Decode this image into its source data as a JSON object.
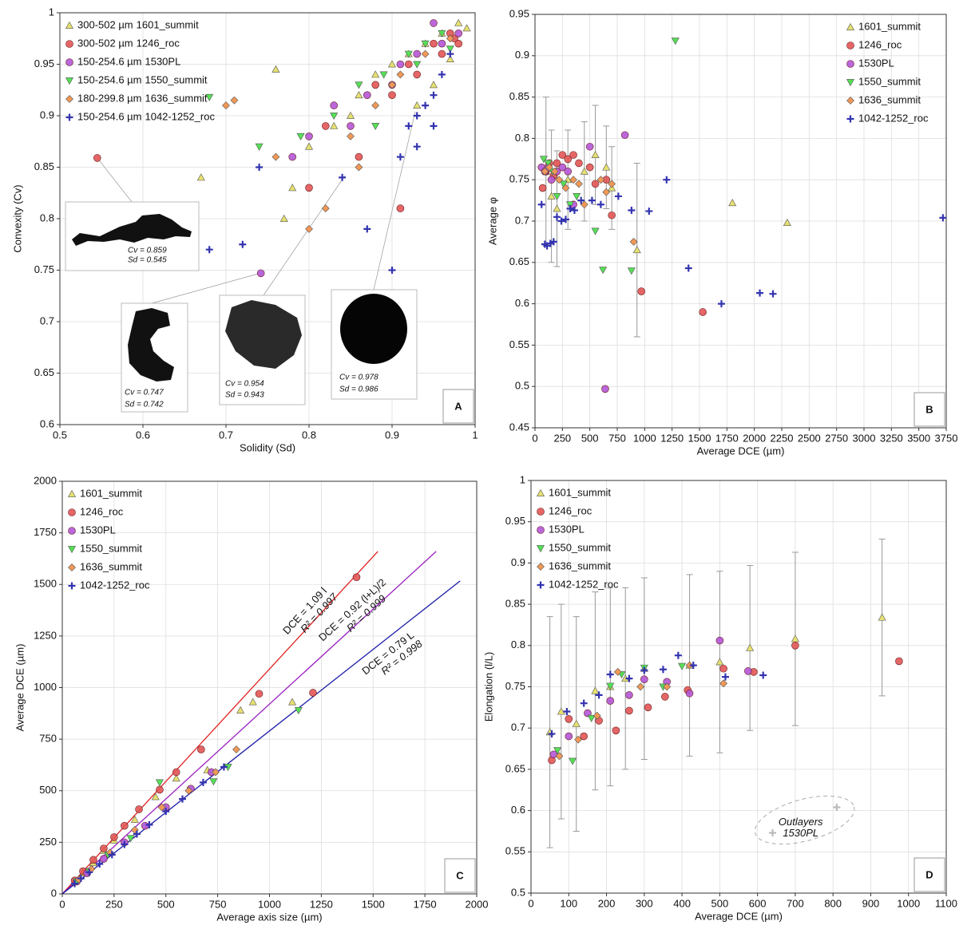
{
  "chart_data": [
    {
      "type": "scatter",
      "panel_label": "A",
      "x_label": "Solidity (Sd)",
      "y_label": "Convexity (Cv)",
      "xlim": [
        0.5,
        1
      ],
      "xticks": [
        0.5,
        0.6,
        0.7,
        0.8,
        0.9,
        1
      ],
      "ylim": [
        0.6,
        1
      ],
      "yticks": [
        0.6,
        0.65,
        0.7,
        0.75,
        0.8,
        0.85,
        0.9,
        0.95,
        1
      ],
      "grid": true,
      "legend": "upper left",
      "series": [
        {
          "name": "1601_summit",
          "size_range": "300-502 µm",
          "label_color": "#e0b800",
          "color": "#e6e070",
          "marker": "triangle",
          "x": [
            0.67,
            0.77,
            0.78,
            0.8,
            0.83,
            0.86,
            0.88,
            0.9,
            0.92,
            0.94,
            0.96,
            0.98,
            0.93,
            0.97,
            0.85,
            0.76,
            0.99,
            0.95
          ],
          "values": [
            0.84,
            0.8,
            0.83,
            0.87,
            0.89,
            0.92,
            0.94,
            0.95,
            0.96,
            0.97,
            0.98,
            0.99,
            0.91,
            0.955,
            0.9,
            0.945,
            0.985,
            0.93
          ]
        },
        {
          "name": "1246_roc",
          "size_range": "300-502 µm",
          "label_color": "#e02020",
          "color": "#e25555",
          "marker": "circle",
          "x": [
            0.545,
            0.8,
            0.86,
            0.91,
            0.88,
            0.92,
            0.95,
            0.97,
            0.975,
            0.98,
            0.82,
            0.9,
            0.96,
            0.93
          ],
          "values": [
            0.859,
            0.83,
            0.86,
            0.81,
            0.93,
            0.95,
            0.97,
            0.98,
            0.975,
            0.97,
            0.89,
            0.92,
            0.96,
            0.94
          ]
        },
        {
          "name": "1530PL",
          "size_range": "150-254.6 µm",
          "label_color": "#9020c0",
          "color": "#b455d6",
          "marker": "circle",
          "x": [
            0.742,
            0.78,
            0.8,
            0.85,
            0.87,
            0.9,
            0.93,
            0.96,
            0.98,
            0.83,
            0.91,
            0.95
          ],
          "values": [
            0.747,
            0.86,
            0.88,
            0.89,
            0.92,
            0.93,
            0.96,
            0.97,
            0.98,
            0.91,
            0.95,
            0.99
          ]
        },
        {
          "name": "1550_summit",
          "size_range": "150-254.6 µm",
          "label_color": "#20c020",
          "color": "#55e055",
          "marker": "down-triangle",
          "x": [
            0.68,
            0.74,
            0.79,
            0.83,
            0.86,
            0.89,
            0.92,
            0.94,
            0.96,
            0.97,
            0.88,
            0.93
          ],
          "values": [
            0.918,
            0.87,
            0.88,
            0.9,
            0.93,
            0.94,
            0.96,
            0.97,
            0.98,
            0.965,
            0.89,
            0.95
          ]
        },
        {
          "name": "1636_summit",
          "size_range": "180-299.8 µm",
          "label_color": "#f08020",
          "color": "#f09858",
          "marker": "diamond",
          "x": [
            0.7,
            0.71,
            0.76,
            0.8,
            0.82,
            0.85,
            0.88,
            0.91,
            0.94,
            0.97,
            0.9,
            0.86
          ],
          "values": [
            0.91,
            0.915,
            0.86,
            0.79,
            0.81,
            0.88,
            0.91,
            0.94,
            0.96,
            0.975,
            0.93,
            0.85
          ]
        },
        {
          "name": "1042-1252_roc",
          "size_range": "150-254.6 µm",
          "label_color": "#7090e0",
          "color": "#3434b0",
          "marker": "plus",
          "x": [
            0.68,
            0.72,
            0.74,
            0.84,
            0.87,
            0.9,
            0.91,
            0.92,
            0.93,
            0.95,
            0.96,
            0.94,
            0.97,
            0.95,
            0.93
          ],
          "values": [
            0.77,
            0.775,
            0.85,
            0.84,
            0.79,
            0.75,
            0.86,
            0.89,
            0.9,
            0.92,
            0.94,
            0.91,
            0.96,
            0.89,
            0.87
          ]
        }
      ],
      "insets": [
        {
          "cv": "Cv = 0.859",
          "sd": "Sd = 0.545"
        },
        {
          "cv": "Cv = 0.747",
          "sd": "Sd = 0.742"
        },
        {
          "cv": "Cv = 0.954",
          "sd": "Sd = 0.943"
        },
        {
          "cv": "Cv = 0.978",
          "sd": "Sd = 0.986"
        }
      ]
    },
    {
      "type": "scatter",
      "panel_label": "B",
      "x_label": "Average DCE (µm)",
      "y_label": "Average φ",
      "xlim": [
        0,
        3750
      ],
      "xticks": [
        0,
        250,
        500,
        750,
        1000,
        1250,
        1500,
        1750,
        2000,
        2250,
        2500,
        2750,
        3000,
        3250,
        3500,
        3750
      ],
      "ylim": [
        0.45,
        0.95
      ],
      "yticks": [
        0.45,
        0.5,
        0.55,
        0.6,
        0.65,
        0.7,
        0.75,
        0.8,
        0.85,
        0.9,
        0.95
      ],
      "grid": true,
      "legend": "upper right",
      "series": [
        {
          "name": "1601_summit",
          "color": "#e6e070",
          "marker": "triangle",
          "x": [
            100,
            150,
            200,
            300,
            450,
            550,
            650,
            700,
            930,
            1800,
            2300
          ],
          "values": [
            0.76,
            0.73,
            0.715,
            0.75,
            0.76,
            0.78,
            0.765,
            0.74,
            0.665,
            0.722,
            0.698
          ],
          "yerr": [
            0.09,
            0.08,
            0.07,
            0.06,
            0.06,
            0.06,
            0.05,
            0.05,
            0.105,
            null,
            null
          ]
        },
        {
          "name": "1246_roc",
          "color": "#e25555",
          "marker": "circle",
          "x": [
            70,
            100,
            130,
            170,
            200,
            250,
            300,
            350,
            400,
            500,
            550,
            650,
            700,
            970,
            1530
          ],
          "values": [
            0.74,
            0.76,
            0.77,
            0.755,
            0.77,
            0.78,
            0.775,
            0.78,
            0.77,
            0.765,
            0.745,
            0.75,
            0.707,
            0.615,
            0.59
          ]
        },
        {
          "name": "1530PL",
          "color": "#b455d6",
          "marker": "circle",
          "x": [
            60,
            90,
            120,
            150,
            200,
            250,
            300,
            350,
            500,
            640,
            820
          ],
          "values": [
            0.765,
            0.76,
            0.765,
            0.75,
            0.76,
            0.765,
            0.76,
            0.72,
            0.79,
            0.497,
            0.804
          ]
        },
        {
          "name": "1550_summit",
          "color": "#55e055",
          "marker": "down-triangle",
          "x": [
            80,
            120,
            160,
            200,
            260,
            320,
            380,
            550,
            620,
            880,
            1280
          ],
          "values": [
            0.775,
            0.77,
            0.76,
            0.73,
            0.745,
            0.72,
            0.73,
            0.688,
            0.641,
            0.64,
            0.918
          ]
        },
        {
          "name": "1636_summit",
          "color": "#f09858",
          "marker": "diamond",
          "x": [
            90,
            130,
            180,
            220,
            280,
            350,
            400,
            450,
            600,
            650,
            700,
            900
          ],
          "values": [
            0.76,
            0.765,
            0.76,
            0.75,
            0.74,
            0.75,
            0.745,
            0.72,
            0.75,
            0.735,
            0.745,
            0.675
          ]
        },
        {
          "name": "1042-1252_roc",
          "color": "#3434b0",
          "marker": "plus",
          "x": [
            60,
            90,
            110,
            140,
            170,
            200,
            240,
            280,
            320,
            360,
            420,
            520,
            600,
            760,
            880,
            1040,
            1200,
            1400,
            1700,
            2050,
            2170,
            3720
          ],
          "values": [
            0.72,
            0.672,
            0.67,
            0.673,
            0.675,
            0.705,
            0.7,
            0.702,
            0.715,
            0.713,
            0.725,
            0.725,
            0.72,
            0.73,
            0.713,
            0.712,
            0.75,
            0.643,
            0.6,
            0.613,
            0.612,
            0.704
          ]
        }
      ]
    },
    {
      "type": "scatter",
      "panel_label": "C",
      "x_label": "Average axis size (µm)",
      "y_label": "Average DCE (µm)",
      "xlim": [
        0,
        2000
      ],
      "xticks": [
        0,
        250,
        500,
        750,
        1000,
        1250,
        1500,
        1750,
        2000
      ],
      "ylim": [
        0,
        2000
      ],
      "yticks": [
        0,
        250,
        500,
        750,
        1000,
        1250,
        1500,
        1750,
        2000
      ],
      "grid": true,
      "legend": "upper left",
      "series": [
        {
          "name": "1601_summit",
          "color": "#e6e070",
          "marker": "triangle",
          "x": [
            60,
            100,
            150,
            200,
            250,
            350,
            450,
            550,
            700,
            860,
            920,
            1110
          ],
          "values": [
            60,
            100,
            150,
            210,
            260,
            360,
            470,
            560,
            600,
            890,
            930,
            930
          ]
        },
        {
          "name": "1246_roc",
          "color": "#e25555",
          "marker": "circle",
          "x": [
            60,
            100,
            150,
            200,
            250,
            300,
            370,
            470,
            550,
            670,
            950,
            1210,
            1420
          ],
          "values": [
            65,
            110,
            165,
            220,
            275,
            330,
            410,
            505,
            590,
            700,
            970,
            975,
            1535
          ]
        },
        {
          "name": "1530PL",
          "color": "#b455d6",
          "marker": "circle",
          "x": [
            70,
            120,
            200,
            300,
            400,
            500,
            620,
            720
          ],
          "values": [
            60,
            100,
            170,
            250,
            330,
            420,
            510,
            590
          ]
        },
        {
          "name": "1550_summit",
          "color": "#55e055",
          "marker": "down-triangle",
          "x": [
            70,
            130,
            220,
            330,
            470,
            730,
            800,
            1140
          ],
          "values": [
            60,
            110,
            190,
            270,
            540,
            545,
            615,
            890
          ]
        },
        {
          "name": "1636_summit",
          "color": "#f09858",
          "marker": "diamond",
          "x": [
            80,
            140,
            230,
            350,
            480,
            610,
            740,
            840
          ],
          "values": [
            70,
            120,
            200,
            310,
            420,
            500,
            590,
            700
          ]
        },
        {
          "name": "1042-1252_roc",
          "color": "#3434b0",
          "marker": "plus",
          "x": [
            60,
            90,
            130,
            180,
            240,
            300,
            360,
            420,
            500,
            580,
            680,
            780
          ],
          "values": [
            50,
            75,
            105,
            145,
            190,
            240,
            290,
            335,
            400,
            460,
            540,
            615
          ]
        }
      ],
      "fits": [
        {
          "label": "DCE = 1.09 l",
          "r2": "R² = 0.997",
          "slope": 1.09,
          "color": "#e02020"
        },
        {
          "label": "DCE = 0.92 (l+L)/2",
          "r2": "R² = 0.999",
          "slope": 0.92,
          "color": "#9a20c0"
        },
        {
          "label": "DCE = 0.79 L",
          "r2": "R² = 0.998",
          "slope": 0.79,
          "color": "#1a1aa8"
        }
      ]
    },
    {
      "type": "scatter",
      "panel_label": "D",
      "x_label": "Average DCE (µm)",
      "y_label": "Elongation (l/L)",
      "xlim": [
        0,
        1100
      ],
      "xticks": [
        0,
        100,
        200,
        300,
        400,
        500,
        600,
        700,
        800,
        900,
        1000,
        1100
      ],
      "ylim": [
        0.5,
        1
      ],
      "yticks": [
        0.5,
        0.55,
        0.6,
        0.65,
        0.7,
        0.75,
        0.8,
        0.85,
        0.9,
        0.95,
        1
      ],
      "grid": true,
      "legend": "upper left",
      "series": [
        {
          "name": "1601_summit",
          "color": "#e6e070",
          "marker": "triangle",
          "x": [
            50,
            80,
            120,
            170,
            210,
            250,
            300,
            420,
            500,
            580,
            700,
            930
          ],
          "values": [
            0.695,
            0.72,
            0.705,
            0.745,
            0.75,
            0.76,
            0.772,
            0.776,
            0.78,
            0.797,
            0.808,
            0.834
          ],
          "yerr": [
            0.14,
            0.13,
            0.13,
            0.12,
            0.12,
            0.11,
            0.11,
            0.11,
            0.11,
            0.1,
            0.105,
            0.095
          ]
        },
        {
          "name": "1246_roc",
          "color": "#e25555",
          "marker": "circle",
          "x": [
            55,
            100,
            140,
            180,
            225,
            260,
            310,
            355,
            415,
            510,
            590,
            700,
            975
          ],
          "values": [
            0.661,
            0.711,
            0.69,
            0.709,
            0.697,
            0.721,
            0.725,
            0.738,
            0.746,
            0.772,
            0.768,
            0.8,
            0.781
          ]
        },
        {
          "name": "1530PL",
          "color": "#b455d6",
          "marker": "circle",
          "x": [
            60,
            100,
            150,
            210,
            260,
            300,
            360,
            420,
            500,
            575
          ],
          "values": [
            0.668,
            0.69,
            0.718,
            0.733,
            0.74,
            0.759,
            0.756,
            0.742,
            0.806,
            0.769
          ]
        },
        {
          "name": "1550_summit",
          "color": "#55e055",
          "marker": "down-triangle",
          "x": [
            70,
            110,
            160,
            210,
            240,
            300,
            350,
            400
          ],
          "values": [
            0.673,
            0.66,
            0.712,
            0.751,
            0.765,
            0.773,
            0.75,
            0.775
          ]
        },
        {
          "name": "1636_summit",
          "color": "#f09858",
          "marker": "diamond",
          "x": [
            75,
            125,
            175,
            230,
            290,
            360,
            420,
            510
          ],
          "values": [
            0.666,
            0.686,
            0.715,
            0.768,
            0.75,
            0.75,
            0.776,
            0.754
          ]
        },
        {
          "name": "1042-1252_roc",
          "color": "#3434b0",
          "marker": "plus",
          "x": [
            55,
            95,
            140,
            180,
            210,
            260,
            300,
            350,
            390,
            430,
            515,
            615
          ],
          "values": [
            0.693,
            0.72,
            0.73,
            0.74,
            0.765,
            0.76,
            0.77,
            0.771,
            0.788,
            0.776,
            0.762,
            0.764
          ]
        }
      ],
      "outliers": {
        "label": [
          "Outlayers",
          "1530PL"
        ],
        "x": [
          640,
          810
        ],
        "values": [
          0.573,
          0.604
        ]
      }
    }
  ]
}
